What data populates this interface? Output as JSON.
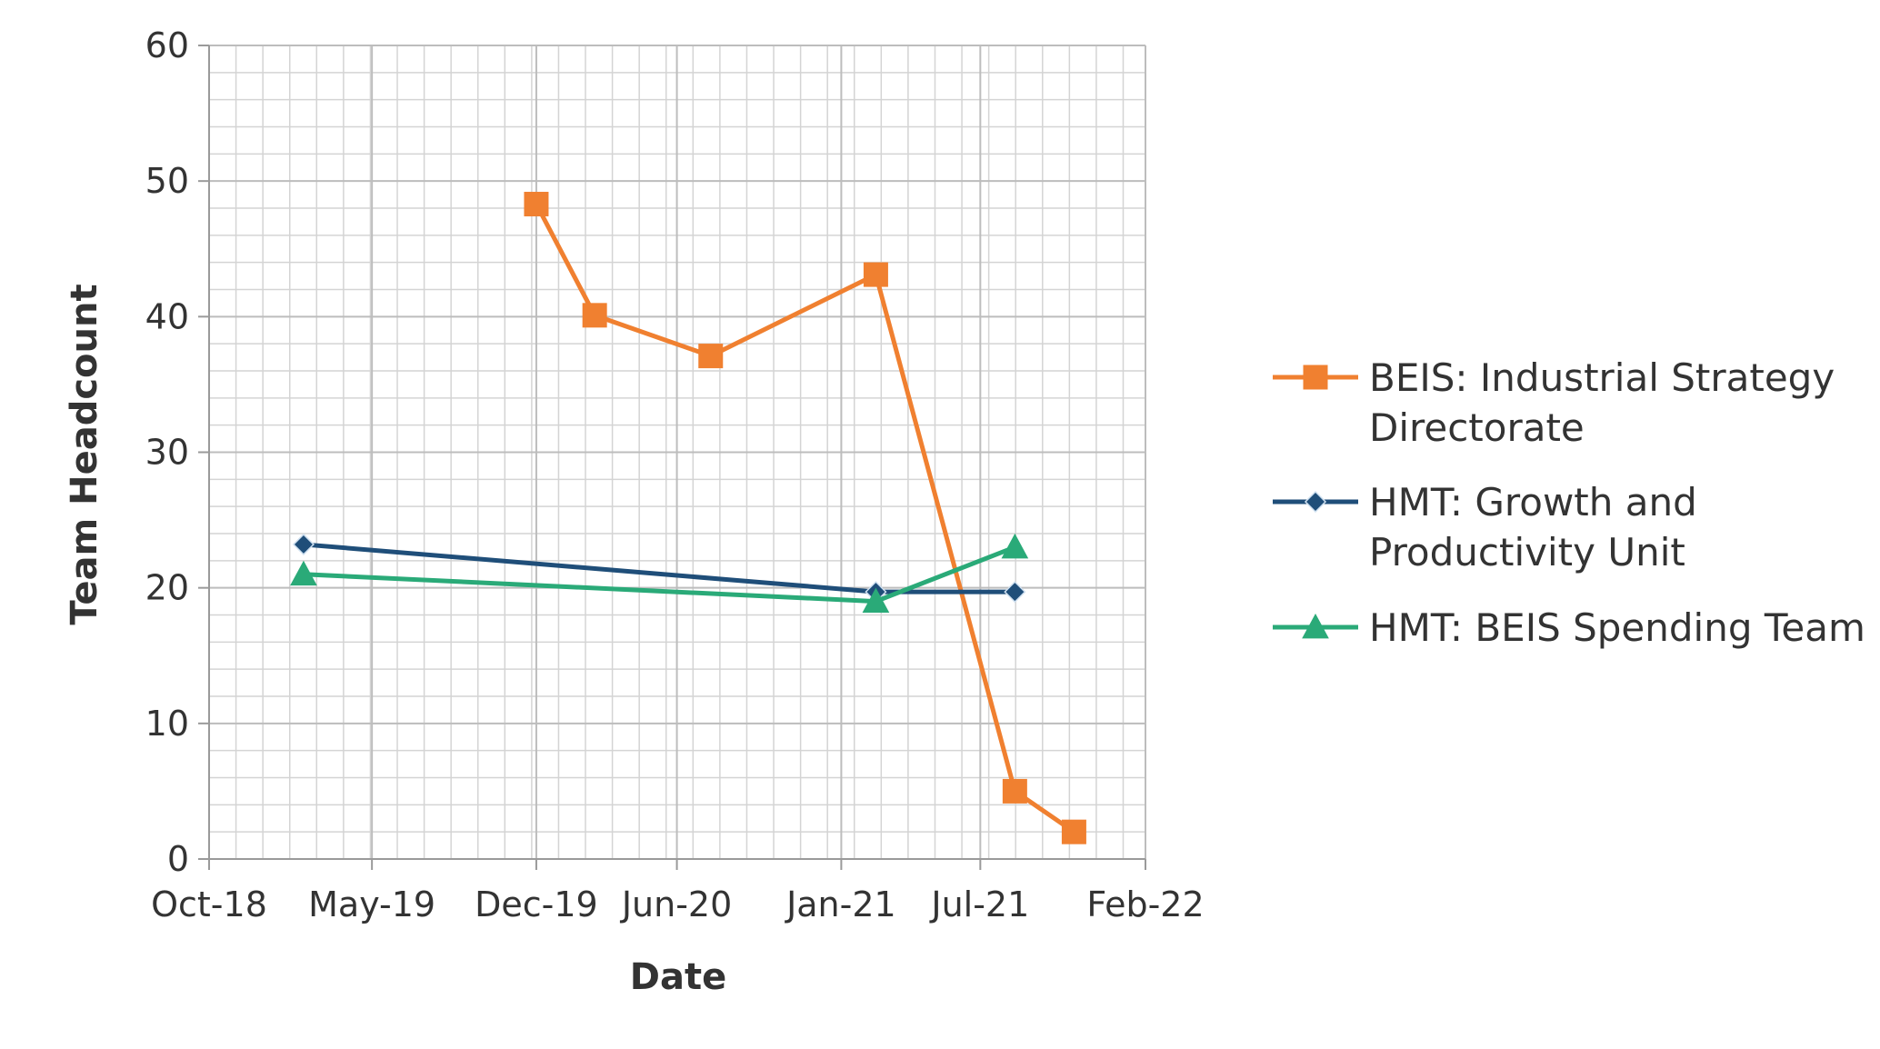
{
  "chart_data": {
    "type": "line",
    "title": "",
    "xlabel": "Date",
    "ylabel": "Team Headcount",
    "x_axis": {
      "type": "date",
      "range": [
        "2018-10-01",
        "2022-02-01"
      ],
      "ticks": [
        {
          "date": "2018-10-01",
          "label": "Oct-18"
        },
        {
          "date": "2019-05-01",
          "label": "May-19"
        },
        {
          "date": "2019-12-01",
          "label": "Dec-19"
        },
        {
          "date": "2020-06-01",
          "label": "Jun-20"
        },
        {
          "date": "2021-01-01",
          "label": "Jan-21"
        },
        {
          "date": "2021-07-01",
          "label": "Jul-21"
        },
        {
          "date": "2022-02-01",
          "label": "Feb-22"
        }
      ]
    },
    "y_axis": {
      "range": [
        0,
        60
      ],
      "ticks": [
        0,
        10,
        20,
        30,
        40,
        50,
        60
      ]
    },
    "grid": true,
    "legend": "right",
    "series": [
      {
        "name": "BEIS: Industrial Strategy Directorate",
        "legend_lines": [
          "BEIS: Industrial Strategy",
          "Directorate"
        ],
        "color": "#F08030",
        "marker": "square",
        "points": [
          {
            "x": "2019-12-01",
            "y": 48.3
          },
          {
            "x": "2020-02-15",
            "y": 40.1
          },
          {
            "x": "2020-07-15",
            "y": 37.1
          },
          {
            "x": "2021-02-15",
            "y": 43.1
          },
          {
            "x": "2021-08-15",
            "y": 5
          },
          {
            "x": "2021-10-31",
            "y": 2
          }
        ]
      },
      {
        "name": "HMT: Growth and Productivity Unit",
        "legend_lines": [
          "HMT: Growth and",
          "Productivity Unit"
        ],
        "color": "#1F4E79",
        "marker": "diamond",
        "points": [
          {
            "x": "2019-02-01",
            "y": 23.2
          },
          {
            "x": "2021-02-15",
            "y": 19.7
          },
          {
            "x": "2021-08-15",
            "y": 19.7
          }
        ]
      },
      {
        "name": "HMT: BEIS Spending Team",
        "legend_lines": [
          "HMT: BEIS Spending Team"
        ],
        "color": "#2AAA78",
        "marker": "triangle",
        "points": [
          {
            "x": "2019-02-01",
            "y": 21
          },
          {
            "x": "2021-02-15",
            "y": 19
          },
          {
            "x": "2021-08-15",
            "y": 23
          }
        ]
      }
    ]
  }
}
